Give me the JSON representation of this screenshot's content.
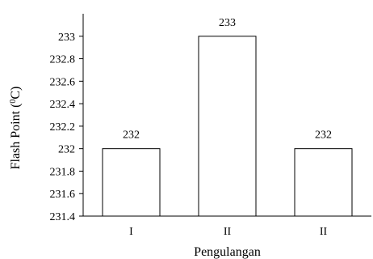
{
  "chart_data": {
    "type": "bar",
    "title": "",
    "xlabel": "Pengulangan",
    "ylabel": "Flash Point (",
    "ylabel_sup": "0",
    "ylabel_suffix": "C)",
    "categories": [
      "I",
      "II",
      "II"
    ],
    "values": [
      232,
      233,
      232
    ],
    "data_labels": [
      "232",
      "233",
      "232"
    ],
    "ylim": [
      231.4,
      233.2
    ],
    "yticks": [
      231.4,
      231.6,
      231.8,
      232,
      232.2,
      232.4,
      232.6,
      232.8,
      233
    ],
    "ytick_labels": [
      "231.4",
      "231.6",
      "231.8",
      "232",
      "232.2",
      "232.4",
      "232.6",
      "232.8",
      "233"
    ],
    "grid": false,
    "legend": "none",
    "colors": {
      "bar_fill": "#ffffff",
      "bar_stroke": "#000000",
      "axis": "#000000"
    }
  }
}
